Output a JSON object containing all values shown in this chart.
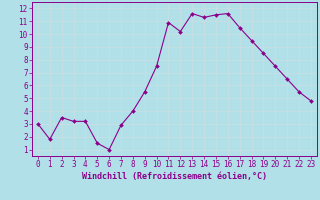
{
  "x": [
    0,
    1,
    2,
    3,
    4,
    5,
    6,
    7,
    8,
    9,
    10,
    11,
    12,
    13,
    14,
    15,
    16,
    17,
    18,
    19,
    20,
    21,
    22,
    23
  ],
  "y": [
    3.0,
    1.8,
    3.5,
    3.2,
    3.2,
    1.5,
    1.0,
    2.9,
    4.0,
    5.5,
    7.5,
    10.9,
    10.2,
    11.6,
    11.3,
    11.5,
    11.6,
    10.5,
    9.5,
    8.5,
    7.5,
    6.5,
    5.5,
    4.8
  ],
  "line_color": "#8B008B",
  "marker": "D",
  "marker_size": 2,
  "bg_color": "#b2e0e8",
  "grid_color": "#c8dfe3",
  "xlabel": "Windchill (Refroidissement éolien,°C)",
  "xlabel_color": "#8B008B",
  "tick_color": "#8B008B",
  "spine_color": "#8B008B",
  "xlim": [
    -0.5,
    23.5
  ],
  "ylim": [
    0.5,
    12.5
  ],
  "yticks": [
    1,
    2,
    3,
    4,
    5,
    6,
    7,
    8,
    9,
    10,
    11,
    12
  ],
  "xticks": [
    0,
    1,
    2,
    3,
    4,
    5,
    6,
    7,
    8,
    9,
    10,
    11,
    12,
    13,
    14,
    15,
    16,
    17,
    18,
    19,
    20,
    21,
    22,
    23
  ],
  "tick_fontsize": 5.5,
  "xlabel_fontsize": 6.0,
  "linewidth": 0.8
}
